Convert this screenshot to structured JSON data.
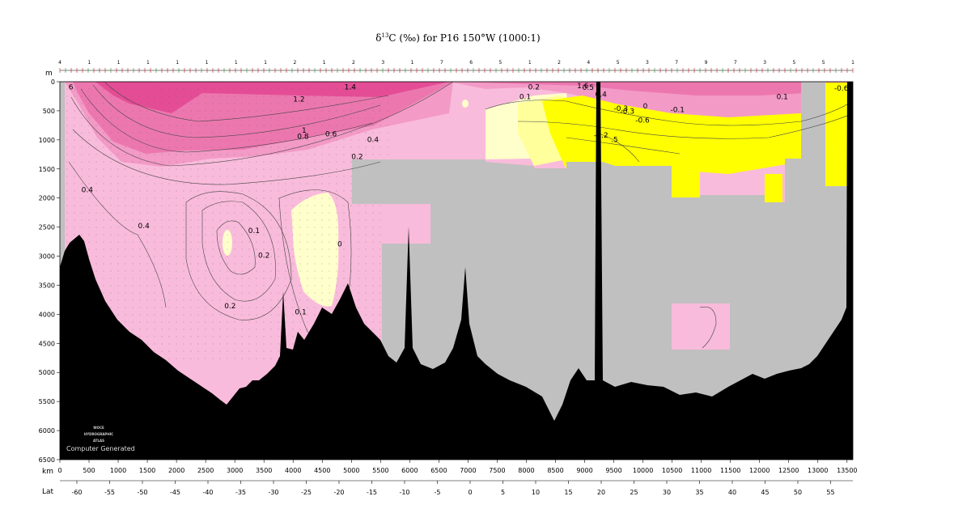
{
  "chart_data": {
    "type": "heatmap",
    "title_prefix": "δ",
    "title_sup": "13",
    "title_rest": "C (‰) for P16 150°W (1000:1)",
    "yaxis_unit": "m",
    "xaxis_unit": "km",
    "lat_label": "Lat",
    "ylim": [
      0,
      6500
    ],
    "xlim": [
      0,
      13600
    ],
    "depth_ticks": [
      "0",
      "500",
      "1000",
      "1500",
      "2000",
      "2500",
      "3000",
      "3500",
      "4000",
      "4500",
      "5000",
      "5500",
      "6000",
      "6500"
    ],
    "km_ticks": [
      "0",
      "500",
      "1000",
      "1500",
      "2000",
      "2500",
      "3000",
      "3500",
      "4000",
      "4500",
      "5000",
      "5500",
      "6000",
      "6500",
      "7000",
      "7500",
      "8000",
      "8500",
      "9000",
      "9500",
      "10000",
      "10500",
      "11000",
      "11500",
      "12000",
      "12500",
      "13000",
      "13500"
    ],
    "lat_ticks": [
      "-60",
      "-55",
      "-50",
      "-45",
      "-40",
      "-35",
      "-30",
      "-25",
      "-20",
      "-15",
      "-10",
      "-5",
      "0",
      "5",
      "10",
      "15",
      "20",
      "25",
      "30",
      "35",
      "40",
      "45",
      "50",
      "55"
    ],
    "lat_tick_km": [
      -60,
      -55,
      -50,
      -45,
      -40,
      -35,
      -30,
      -25,
      -20,
      -15,
      -10,
      -5,
      0,
      5,
      10,
      15,
      20,
      25,
      30,
      35,
      40,
      45,
      50,
      55
    ],
    "station_labels": [
      "4",
      "1",
      "1",
      "1",
      "1",
      "1",
      "1",
      "1",
      "2",
      "1",
      "2",
      "3",
      "1",
      "7",
      "6",
      "5",
      "1",
      "2",
      "4",
      "5",
      "3",
      "7",
      "9",
      "7",
      "3",
      "5",
      "5",
      "1"
    ],
    "contour_levels": [
      -0.6,
      -0.3,
      -0.1,
      0,
      0.1,
      0.2,
      0.4,
      0.6,
      0.8,
      1,
      1.2,
      1.4
    ],
    "color_classes": [
      {
        "range": "< -0.2",
        "color": "#ffff00"
      },
      {
        "range": "-0.2 to 0",
        "color": "#ffff9b"
      },
      {
        "range": "0 to 0.2",
        "color": "#ffffcc"
      },
      {
        "range": "0.2 to 0.6",
        "color": "#f9bbdb"
      },
      {
        "range": "0.6 to 0.9",
        "color": "#f39ac6"
      },
      {
        "range": "0.9 to 1.2",
        "color": "#ec77af"
      },
      {
        "range": "> 1.2",
        "color": "#e44d95"
      }
    ],
    "colors": {
      "no_data": "#c0c0c0",
      "bathymetry": "#000000",
      "contour": "#444444"
    },
    "contour_labels": [
      {
        "text": "6",
        "km": 150,
        "depth": 130
      },
      {
        "text": "1.4",
        "km": 4880,
        "depth": 130
      },
      {
        "text": "1.2",
        "km": 4000,
        "depth": 340
      },
      {
        "text": "1",
        "km": 4150,
        "depth": 880
      },
      {
        "text": "0.8",
        "km": 4070,
        "depth": 980
      },
      {
        "text": "0.6",
        "km": 4550,
        "depth": 940
      },
      {
        "text": "0.4",
        "km": 5270,
        "depth": 1040
      },
      {
        "text": "0.2",
        "km": 5000,
        "depth": 1330
      },
      {
        "text": "0.4",
        "km": 370,
        "depth": 1900
      },
      {
        "text": "0.4",
        "km": 1340,
        "depth": 2520
      },
      {
        "text": "0.1",
        "km": 3230,
        "depth": 2600
      },
      {
        "text": "0.2",
        "km": 3400,
        "depth": 3030
      },
      {
        "text": "0",
        "km": 4760,
        "depth": 2830
      },
      {
        "text": "0.2",
        "km": 2820,
        "depth": 3900
      },
      {
        "text": "0.1",
        "km": 4030,
        "depth": 4000
      },
      {
        "text": "0.2",
        "km": 8030,
        "depth": 130
      },
      {
        "text": "0.1",
        "km": 7880,
        "depth": 300
      },
      {
        "text": "1.6",
        "km": 8870,
        "depth": 110
      },
      {
        "text": "0.5",
        "km": 8960,
        "depth": 140
      },
      {
        "text": "0.4",
        "km": 9180,
        "depth": 260
      },
      {
        "text": "-0.3",
        "km": 9500,
        "depth": 500
      },
      {
        "text": "-0.3",
        "km": 9610,
        "depth": 550
      },
      {
        "text": "0",
        "km": 10000,
        "depth": 460
      },
      {
        "text": "-0.1",
        "km": 10470,
        "depth": 520
      },
      {
        "text": "-0.6",
        "km": 9870,
        "depth": 700
      },
      {
        "text": "-0.2",
        "km": 9160,
        "depth": 960
      },
      {
        "text": ".5",
        "km": 9450,
        "depth": 1040
      },
      {
        "text": "0.1",
        "km": 12290,
        "depth": 300
      },
      {
        "text": "-0.6",
        "km": 13280,
        "depth": 150
      }
    ]
  },
  "credit": {
    "logo_line1": "WOCE",
    "logo_line2": "HYDROGRAPHIC",
    "logo_line3": "ATLAS",
    "text": "Computer Generated"
  }
}
